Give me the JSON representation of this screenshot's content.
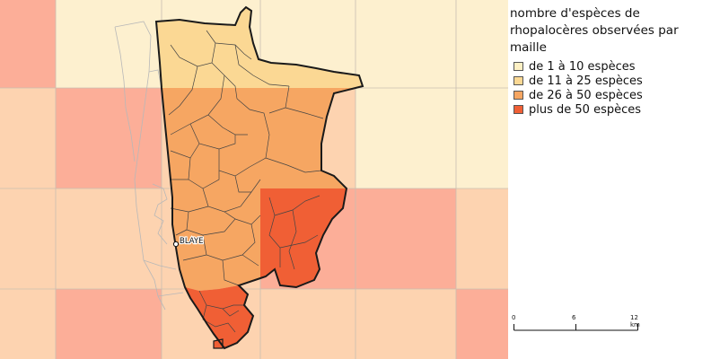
{
  "legend": {
    "title": "nombre d'espèces de rhopalocères observées par maille",
    "items": [
      {
        "label": "de 1 à 10 espèces",
        "color": "#fdf0c4"
      },
      {
        "label": "de 11 à 25 espèces",
        "color": "#fbd894"
      },
      {
        "label": "de 26 à 50 espèces",
        "color": "#f6a662"
      },
      {
        "label": "plus de 50 espèces",
        "color": "#f05f35"
      }
    ]
  },
  "map": {
    "city_label": "BLAYE",
    "cell_colors": {
      "pale_orange": "#fdd3b0",
      "pale_red": "#fcae98",
      "pale_yellow": "#fdf0cf"
    }
  },
  "scale": {
    "ticks": [
      "0",
      "6",
      "12 km"
    ]
  }
}
